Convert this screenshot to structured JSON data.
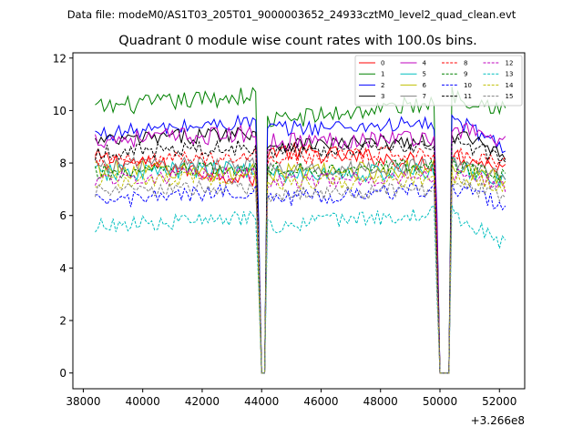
{
  "header": {
    "subtitle": "Data file: modeM0/AS1T03_205T01_9000003652_24933cztM0_level2_quad_clean.evt"
  },
  "chart_data": {
    "type": "line",
    "title": "Quadrant 0 module wise count rates with 100.0s bins.",
    "xlabel": "",
    "ylabel": "",
    "x_offset_label": "+3.266e8",
    "xlim": [
      37650,
      52850
    ],
    "ylim": [
      -0.6,
      12.2
    ],
    "xticks": [
      38000,
      40000,
      42000,
      44000,
      46000,
      48000,
      50000,
      52000
    ],
    "xtick_labels": [
      "38000",
      "40000",
      "42000",
      "44000",
      "46000",
      "48000",
      "50000",
      "52000"
    ],
    "yticks": [
      0,
      2,
      4,
      6,
      8,
      10,
      12
    ],
    "ytick_labels": [
      "0",
      "2",
      "4",
      "6",
      "8",
      "10",
      "12"
    ],
    "x_start": 38400,
    "bin_size": 100,
    "x_end": 52200,
    "gaps": [
      {
        "from": 43900,
        "to": 44200,
        "value": 0
      },
      {
        "from": 49900,
        "to": 50400,
        "value": 0
      }
    ],
    "legend": {
      "placement": "top-right",
      "columns": 4
    },
    "series": [
      {
        "name": "0",
        "color": "#ff0000",
        "dash": "solid",
        "seg_levels": [
          [
            8.2,
            7.4
          ],
          [
            8.5,
            8.0
          ],
          [
            8.3,
            7.8
          ]
        ],
        "noise": 0.35
      },
      {
        "name": "1",
        "color": "#008000",
        "dash": "solid",
        "seg_levels": [
          [
            10.1,
            10.6
          ],
          [
            9.6,
            10.3
          ],
          [
            10.6,
            10.1
          ]
        ],
        "noise": 0.35
      },
      {
        "name": "2",
        "color": "#0000ff",
        "dash": "solid",
        "seg_levels": [
          [
            9.1,
            9.6
          ],
          [
            9.3,
            9.5
          ],
          [
            9.7,
            8.6
          ]
        ],
        "noise": 0.3
      },
      {
        "name": "3",
        "color": "#000000",
        "dash": "solid",
        "seg_levels": [
          [
            8.8,
            9.2
          ],
          [
            8.7,
            8.8
          ],
          [
            9.1,
            8.4
          ]
        ],
        "noise": 0.3
      },
      {
        "name": "4",
        "color": "#bf00bf",
        "dash": "solid",
        "seg_levels": [
          [
            8.9,
            9.1
          ],
          [
            8.8,
            9.0
          ],
          [
            9.4,
            8.8
          ]
        ],
        "noise": 0.35
      },
      {
        "name": "5",
        "color": "#00bfbf",
        "dash": "solid",
        "seg_levels": [
          [
            7.6,
            7.8
          ],
          [
            7.5,
            7.7
          ],
          [
            7.9,
            7.3
          ]
        ],
        "noise": 0.35
      },
      {
        "name": "6",
        "color": "#bfbf00",
        "dash": "solid",
        "seg_levels": [
          [
            7.8,
            7.6
          ],
          [
            7.6,
            7.8
          ],
          [
            7.8,
            7.4
          ]
        ],
        "noise": 0.35
      },
      {
        "name": "7",
        "color": "#808080",
        "dash": "solid",
        "seg_levels": [
          [
            7.9,
            8.0
          ],
          [
            7.7,
            7.9
          ],
          [
            8.0,
            7.6
          ]
        ],
        "noise": 0.3
      },
      {
        "name": "8",
        "color": "#ff0000",
        "dash": "dashed",
        "seg_levels": [
          [
            8.0,
            8.3
          ],
          [
            8.2,
            8.4
          ],
          [
            8.4,
            8.0
          ]
        ],
        "noise": 0.3
      },
      {
        "name": "9",
        "color": "#008000",
        "dash": "dashed",
        "seg_levels": [
          [
            7.6,
            7.8
          ],
          [
            7.7,
            7.9
          ],
          [
            7.9,
            7.5
          ]
        ],
        "noise": 0.3
      },
      {
        "name": "10",
        "color": "#0000ff",
        "dash": "dashed",
        "seg_levels": [
          [
            6.5,
            7.0
          ],
          [
            6.6,
            7.0
          ],
          [
            7.1,
            6.4
          ]
        ],
        "noise": 0.3
      },
      {
        "name": "11",
        "color": "#000000",
        "dash": "dashed",
        "seg_levels": [
          [
            8.4,
            8.6
          ],
          [
            8.5,
            8.6
          ],
          [
            8.8,
            8.2
          ]
        ],
        "noise": 0.3
      },
      {
        "name": "12",
        "color": "#bf00bf",
        "dash": "dashed",
        "seg_levels": [
          [
            7.4,
            7.6
          ],
          [
            7.3,
            7.5
          ],
          [
            7.6,
            7.2
          ]
        ],
        "noise": 0.3
      },
      {
        "name": "13",
        "color": "#00bfbf",
        "dash": "dashed",
        "seg_levels": [
          [
            5.6,
            5.9
          ],
          [
            5.6,
            6.1
          ],
          [
            6.1,
            4.9
          ]
        ],
        "noise": 0.3
      },
      {
        "name": "14",
        "color": "#bfbf00",
        "dash": "dashed",
        "seg_levels": [
          [
            7.3,
            7.5
          ],
          [
            7.2,
            7.4
          ],
          [
            7.5,
            7.1
          ]
        ],
        "noise": 0.3
      },
      {
        "name": "15",
        "color": "#808080",
        "dash": "dashed",
        "seg_levels": [
          [
            6.9,
            7.1
          ],
          [
            6.8,
            7.0
          ],
          [
            7.2,
            6.8
          ]
        ],
        "noise": 0.3
      }
    ]
  }
}
